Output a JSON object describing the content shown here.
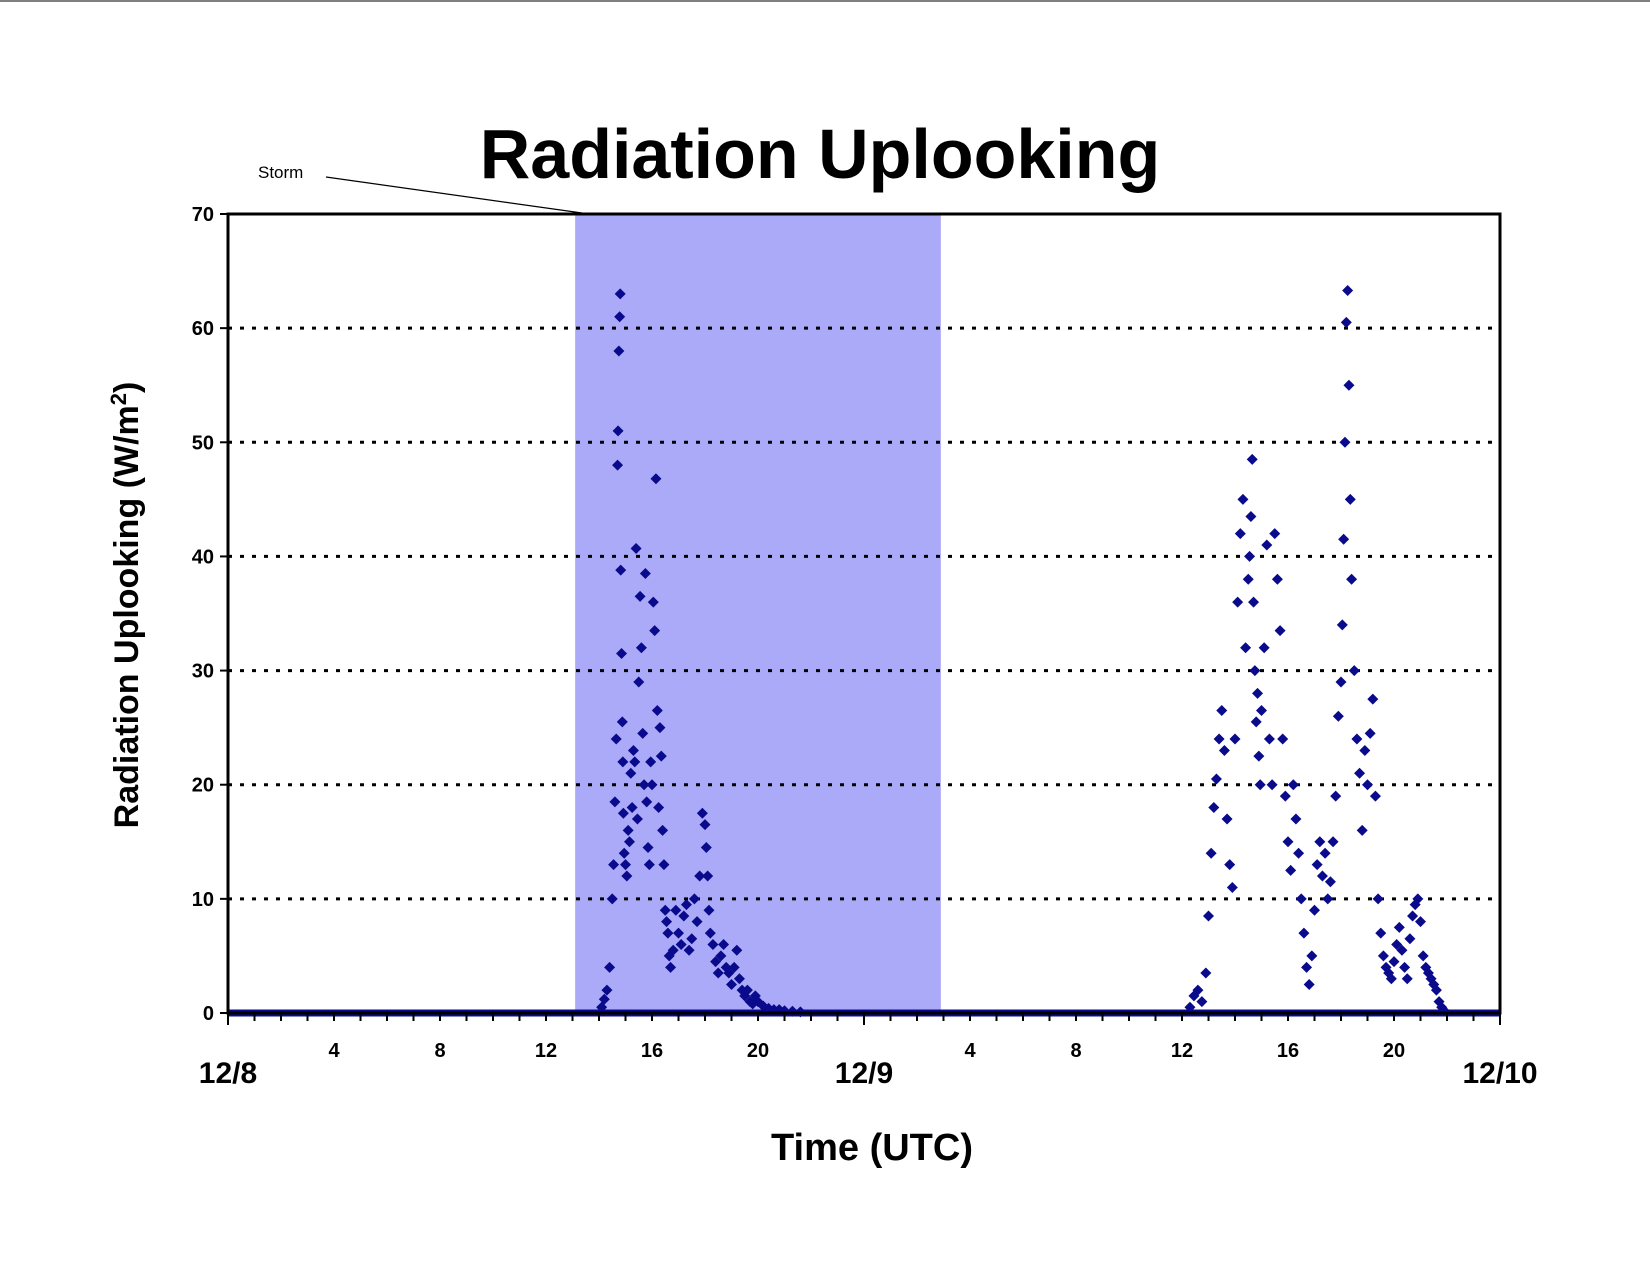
{
  "chart_data": {
    "type": "scatter",
    "title": "Radiation Uplooking",
    "xlabel": "Time (UTC)",
    "ylabel": "Radiation Uplooking (W/m",
    "ylabel_sup": "2",
    "ylabel_close": ")",
    "xlim": [
      0,
      48
    ],
    "ylim": [
      0,
      70
    ],
    "yticks": [
      0,
      10,
      20,
      30,
      40,
      50,
      60,
      70
    ],
    "ytick_labels": [
      "0",
      "10",
      "20",
      "30",
      "40",
      "50",
      "60",
      "70"
    ],
    "grid": "horizontal-dotted",
    "x_major_ticks": [
      {
        "x": 0,
        "label": "12/8"
      },
      {
        "x": 24,
        "label": "12/9"
      },
      {
        "x": 48,
        "label": "12/10"
      }
    ],
    "x_minor_labels": [
      {
        "x": 4,
        "label": "4"
      },
      {
        "x": 8,
        "label": "8"
      },
      {
        "x": 12,
        "label": "12"
      },
      {
        "x": 16,
        "label": "16"
      },
      {
        "x": 20,
        "label": "20"
      },
      {
        "x": 28,
        "label": "4"
      },
      {
        "x": 32,
        "label": "8"
      },
      {
        "x": 36,
        "label": "12"
      },
      {
        "x": 40,
        "label": "16"
      },
      {
        "x": 44,
        "label": "20"
      }
    ],
    "shaded_region": {
      "x0": 13.1,
      "x1": 26.9,
      "color": "#aaaaf8",
      "label": "Storm"
    },
    "marker_color": "#0a0a8c",
    "series": [
      {
        "marker": "diamond",
        "x": [
          14.1,
          14.2,
          14.3,
          14.4,
          14.5,
          14.55,
          14.6,
          14.65,
          14.7,
          14.72,
          14.75,
          14.78,
          14.8,
          14.82,
          14.85,
          14.88,
          14.9,
          14.92,
          14.95,
          15.0,
          15.05,
          15.1,
          15.15,
          15.2,
          15.25,
          15.3,
          15.35,
          15.4,
          15.45,
          15.5,
          15.55,
          15.6,
          15.65,
          15.7,
          15.75,
          15.8,
          15.85,
          15.9,
          15.95,
          16.0,
          16.05,
          16.1,
          16.15,
          16.2,
          16.25,
          16.3,
          16.35,
          16.4,
          16.45,
          16.5,
          16.55,
          16.6,
          16.65,
          16.7,
          16.8,
          16.9,
          17.0,
          17.1,
          17.2,
          17.3,
          17.4,
          17.5,
          17.6,
          17.7,
          17.8,
          17.9,
          18.0,
          18.05,
          18.1,
          18.15,
          18.2,
          18.3,
          18.4,
          18.5,
          18.6,
          18.7,
          18.8,
          18.9,
          19.0,
          19.1,
          19.2,
          19.3,
          19.4,
          19.5,
          19.6,
          19.7,
          19.8,
          19.9,
          20.0,
          20.2,
          20.4,
          20.6,
          20.8,
          21.0,
          21.3,
          21.6
        ],
        "y": [
          0.5,
          1.2,
          2.0,
          4.0,
          10.0,
          13.0,
          18.5,
          24.0,
          48.0,
          51.0,
          58.0,
          61.0,
          63.0,
          38.8,
          31.5,
          25.5,
          22.0,
          17.5,
          14.0,
          13.0,
          12.0,
          16.0,
          15.0,
          21.0,
          18.0,
          23.0,
          22.0,
          40.7,
          17.0,
          29.0,
          36.5,
          32.0,
          24.5,
          20.0,
          38.5,
          18.5,
          14.5,
          13.0,
          22.0,
          20.0,
          36.0,
          33.5,
          46.8,
          26.5,
          18.0,
          25.0,
          22.5,
          16.0,
          13.0,
          9.0,
          8.0,
          7.0,
          5.0,
          4.0,
          5.5,
          9.0,
          7.0,
          6.0,
          8.5,
          9.5,
          5.5,
          6.5,
          10.0,
          8.0,
          12.0,
          17.5,
          16.5,
          14.5,
          12.0,
          9.0,
          7.0,
          6.0,
          4.5,
          3.5,
          5.0,
          6.0,
          4.0,
          3.5,
          2.5,
          4.0,
          5.5,
          3.0,
          2.0,
          1.5,
          2.0,
          1.0,
          0.8,
          1.5,
          1.0,
          0.6,
          0.4,
          0.3,
          0.3,
          0.2,
          0.15,
          0.1
        ]
      },
      {
        "marker": "diamond",
        "x": [
          36.3,
          36.45,
          36.6,
          36.75,
          36.9,
          37.0,
          37.1,
          37.2,
          37.3,
          37.4,
          37.5,
          37.6,
          37.7,
          37.8,
          37.9,
          38.0,
          38.1,
          38.2,
          38.3,
          38.4,
          38.5,
          38.55,
          38.6,
          38.65,
          38.7,
          38.75,
          38.8,
          38.85,
          38.9,
          38.95,
          39.0,
          39.1,
          39.2,
          39.3,
          39.4,
          39.5,
          39.6,
          39.7,
          39.8,
          39.9,
          40.0,
          40.1,
          40.2,
          40.3,
          40.4,
          40.5,
          40.6,
          40.7,
          40.8,
          40.9,
          41.0,
          41.1,
          41.2,
          41.3,
          41.4,
          41.5,
          41.6,
          41.7,
          41.8,
          41.9,
          42.0,
          42.05,
          42.1,
          42.15,
          42.2,
          42.25,
          42.3,
          42.35,
          42.4,
          42.5,
          42.6,
          42.7,
          42.8,
          42.9,
          43.0,
          43.1,
          43.2,
          43.3,
          43.4,
          43.5,
          43.6,
          43.7,
          43.8,
          43.9,
          44.0,
          44.1,
          44.2,
          44.3,
          44.4,
          44.5,
          44.6,
          44.7,
          44.8,
          44.9,
          45.0,
          45.1,
          45.2,
          45.3,
          45.4,
          45.5,
          45.6,
          45.7,
          45.8,
          45.9
        ],
        "y": [
          0.5,
          1.5,
          2.0,
          1.0,
          3.5,
          8.5,
          14.0,
          18.0,
          20.5,
          24.0,
          26.5,
          23.0,
          17.0,
          13.0,
          11.0,
          24.0,
          36.0,
          42.0,
          45.0,
          32.0,
          38.0,
          40.0,
          43.5,
          48.5,
          36.0,
          30.0,
          25.5,
          28.0,
          22.5,
          20.0,
          26.5,
          32.0,
          41.0,
          24.0,
          20.0,
          42.0,
          38.0,
          33.5,
          24.0,
          19.0,
          15.0,
          12.5,
          20.0,
          17.0,
          14.0,
          10.0,
          7.0,
          4.0,
          2.5,
          5.0,
          9.0,
          13.0,
          15.0,
          12.0,
          14.0,
          10.0,
          11.5,
          15.0,
          19.0,
          26.0,
          29.0,
          34.0,
          41.5,
          50.0,
          60.5,
          63.3,
          55.0,
          45.0,
          38.0,
          30.0,
          24.0,
          21.0,
          16.0,
          23.0,
          20.0,
          24.5,
          27.5,
          19.0,
          10.0,
          7.0,
          5.0,
          4.0,
          3.5,
          3.0,
          4.5,
          6.0,
          7.5,
          5.5,
          4.0,
          3.0,
          6.5,
          8.5,
          9.5,
          10.0,
          8.0,
          5.0,
          4.0,
          3.5,
          3.0,
          2.5,
          2.0,
          1.0,
          0.5,
          0.2
        ]
      }
    ]
  }
}
